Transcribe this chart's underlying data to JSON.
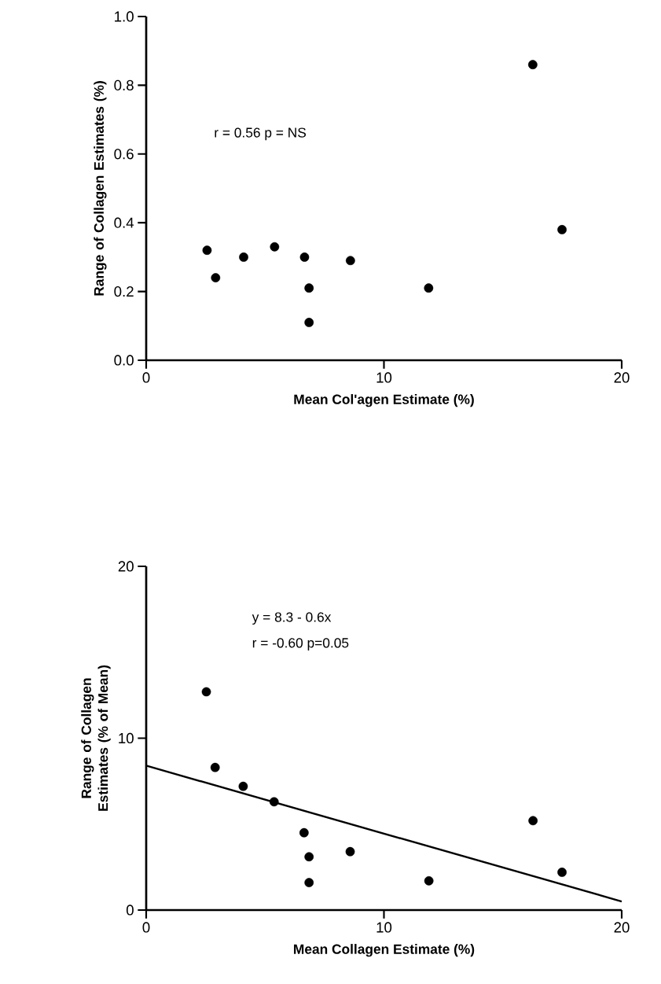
{
  "chart_data": [
    {
      "type": "scatter",
      "xlabel": "Mean Col'agen Estimate (%)",
      "ylabel": "Range of Collagen Estimates (%)",
      "annotations": [
        "r = 0.56  p = NS"
      ],
      "xlim": [
        0,
        20
      ],
      "ylim": [
        0,
        1
      ],
      "xticks": [
        0,
        10,
        20
      ],
      "yticks": [
        {
          "value": 0,
          "label": "0.0"
        },
        {
          "value": 0.2,
          "label": "0.2"
        },
        {
          "value": 0.4,
          "label": "0.4"
        },
        {
          "value": 0.6,
          "label": "0.6"
        },
        {
          "value": 0.8,
          "label": "0.8"
        },
        {
          "value": 1,
          "label": "1.0"
        }
      ],
      "marker": "circle",
      "series": [
        {
          "color": "#000000",
          "x": [
            2.56,
            2.92,
            4.1,
            5.4,
            6.66,
            6.85,
            6.85,
            8.59,
            11.88,
            16.26,
            17.49
          ],
          "values": [
            0.32,
            0.24,
            0.3,
            0.33,
            0.3,
            0.21,
            0.11,
            0.29,
            0.21,
            0.86,
            0.38
          ]
        }
      ]
    },
    {
      "type": "scatter",
      "xlabel": "Mean Collagen Estimate (%)",
      "ylabel": "Range of Collagen Estimates (% of Mean)",
      "annotations": [
        "y = 8.3 - 0.6x",
        "r = -0.60  p=0.05"
      ],
      "xlim": [
        0,
        20
      ],
      "ylim": [
        0,
        20
      ],
      "xticks": [
        0,
        10,
        20
      ],
      "yticks": [
        0,
        10,
        20
      ],
      "marker": "circle",
      "series": [
        {
          "color": "#000000",
          "x": [
            2.53,
            2.9,
            4.08,
            5.38,
            6.64,
            6.85,
            6.85,
            8.58,
            11.89,
            16.27,
            17.49
          ],
          "values": [
            12.7,
            8.3,
            7.2,
            6.3,
            4.5,
            3.1,
            1.6,
            3.4,
            1.7,
            5.2,
            2.2
          ]
        },
        {
          "type": "line",
          "color": "#000000",
          "marker": "none",
          "x": [
            0,
            20
          ],
          "values": [
            8.4,
            0.5
          ]
        }
      ]
    }
  ]
}
